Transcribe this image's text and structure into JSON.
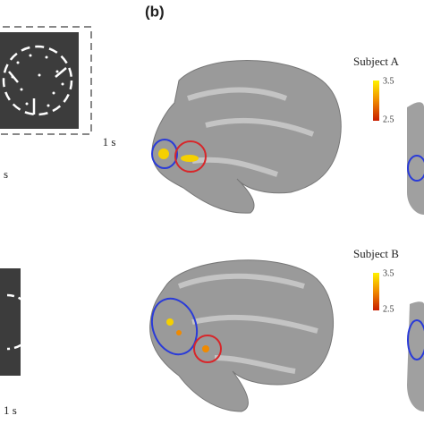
{
  "panel_label": "(b)",
  "left": {
    "top_duration": "1 s",
    "side_duration": "s",
    "bottom_duration": "1 s"
  },
  "subjects": [
    {
      "name": "Subject A",
      "colorbar": {
        "max": 3.5,
        "min": 2.5
      }
    },
    {
      "name": "Subject B",
      "colorbar": {
        "max": 3.5,
        "min": 2.5
      }
    }
  ]
}
